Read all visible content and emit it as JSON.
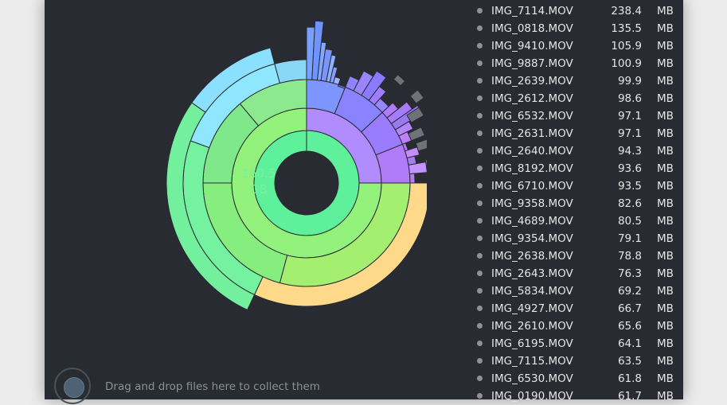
{
  "chart": {
    "center_value": "160.5",
    "center_unit": "GB"
  },
  "files": [
    {
      "name": "IMG_7114.MOV",
      "size": "238.4",
      "unit": "MB"
    },
    {
      "name": "IMG_0818.MOV",
      "size": "135.5",
      "unit": "MB"
    },
    {
      "name": "IMG_9410.MOV",
      "size": "105.9",
      "unit": "MB"
    },
    {
      "name": "IMG_9887.MOV",
      "size": "100.9",
      "unit": "MB"
    },
    {
      "name": "IMG_2639.MOV",
      "size": "99.9",
      "unit": "MB"
    },
    {
      "name": "IMG_2612.MOV",
      "size": "98.6",
      "unit": "MB"
    },
    {
      "name": "IMG_6532.MOV",
      "size": "97.1",
      "unit": "MB"
    },
    {
      "name": "IMG_2631.MOV",
      "size": "97.1",
      "unit": "MB"
    },
    {
      "name": "IMG_2640.MOV",
      "size": "94.3",
      "unit": "MB"
    },
    {
      "name": "IMG_8192.MOV",
      "size": "93.6",
      "unit": "MB"
    },
    {
      "name": "IMG_6710.MOV",
      "size": "93.5",
      "unit": "MB"
    },
    {
      "name": "IMG_9358.MOV",
      "size": "82.6",
      "unit": "MB"
    },
    {
      "name": "IMG_4689.MOV",
      "size": "80.5",
      "unit": "MB"
    },
    {
      "name": "IMG_9354.MOV",
      "size": "79.1",
      "unit": "MB"
    },
    {
      "name": "IMG_2638.MOV",
      "size": "78.8",
      "unit": "MB"
    },
    {
      "name": "IMG_2643.MOV",
      "size": "76.3",
      "unit": "MB"
    },
    {
      "name": "IMG_5834.MOV",
      "size": "69.2",
      "unit": "MB"
    },
    {
      "name": "IMG_4927.MOV",
      "size": "66.7",
      "unit": "MB"
    },
    {
      "name": "IMG_2610.MOV",
      "size": "65.6",
      "unit": "MB"
    },
    {
      "name": "IMG_6195.MOV",
      "size": "64.1",
      "unit": "MB"
    },
    {
      "name": "IMG_7115.MOV",
      "size": "63.5",
      "unit": "MB"
    },
    {
      "name": "IMG_6530.MOV",
      "size": "61.8",
      "unit": "MB"
    },
    {
      "name": "IMG_0190.MOV",
      "size": "61.7",
      "unit": "MB"
    }
  ],
  "drop_zone": {
    "hint": "Drag and drop files here to collect them",
    "icon": "drop-target-icon"
  }
}
